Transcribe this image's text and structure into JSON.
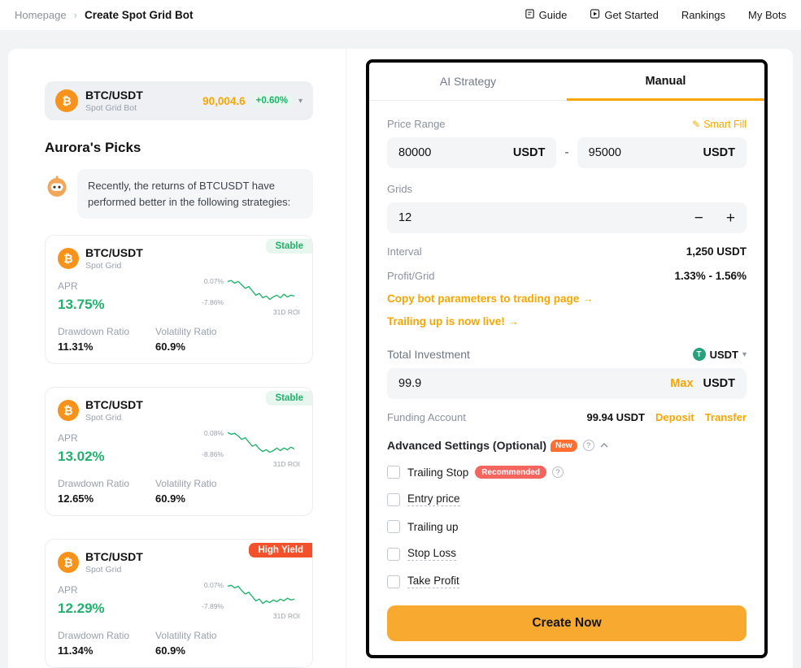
{
  "colors": {
    "accent": "#f7a600",
    "button": "#f8a92f",
    "green": "#20b26c",
    "green_bg": "#e7f6ee",
    "high_yield_badge": "#f2512b",
    "recommended_badge": "#f5655f",
    "new_badge": "#ff6e30",
    "usdt_coin": "#26a17b",
    "btc_coin": "#f7931a"
  },
  "icons": {
    "btc": "₿",
    "usdt_letter": "T",
    "help": "?",
    "caret_down": "▾",
    "breadcrumb_sep": "›",
    "pencil": "✎"
  },
  "header": {
    "breadcrumb": {
      "home": "Homepage",
      "current": "Create Spot Grid Bot"
    },
    "nav": [
      {
        "label": "Guide"
      },
      {
        "label": "Get Started"
      },
      {
        "label": "Rankings"
      },
      {
        "label": "My Bots"
      }
    ]
  },
  "left": {
    "pair_selector": {
      "pair": "BTC/USDT",
      "subtitle": "Spot Grid Bot",
      "price": "90,004.6",
      "change": "+0.60%"
    },
    "picks_title": "Aurora's Picks",
    "picks_note": "Recently, the returns of BTCUSDT have performed better in the following strategies:",
    "cards": [
      {
        "badge": "Stable",
        "pair": "BTC/USDT",
        "type": "Spot Grid",
        "apr_label": "APR",
        "apr": "13.75%",
        "chart": {
          "high": "0.07%",
          "low": "-7.86%",
          "roi": "31D ROI",
          "points": [
            5,
            4,
            7,
            5,
            9,
            13,
            11,
            16,
            21,
            19,
            24,
            22,
            26,
            23,
            21,
            24,
            20,
            23,
            21,
            22
          ]
        },
        "stats": [
          {
            "label": "Drawdown Ratio",
            "value": "11.31%"
          },
          {
            "label": "Volatility Ratio",
            "value": "60.9%"
          }
        ]
      },
      {
        "badge": "Stable",
        "pair": "BTC/USDT",
        "type": "Spot Grid",
        "apr_label": "APR",
        "apr": "13.02%",
        "chart": {
          "high": "0.08%",
          "low": "-8.86%",
          "roi": "31D ROI",
          "points": [
            4,
            6,
            5,
            8,
            12,
            10,
            15,
            20,
            18,
            23,
            26,
            24,
            27,
            25,
            22,
            25,
            22,
            24,
            21,
            23
          ]
        },
        "stats": [
          {
            "label": "Drawdown Ratio",
            "value": "12.65%"
          },
          {
            "label": "Volatility Ratio",
            "value": "60.9%"
          }
        ]
      },
      {
        "badge": "High Yield",
        "pair": "BTC/USDT",
        "type": "Spot Grid",
        "apr_label": "APR",
        "apr": "12.29%",
        "chart": {
          "high": "0.07%",
          "low": "-7.89%",
          "roi": "31D ROI",
          "points": [
            6,
            5,
            8,
            6,
            11,
            15,
            13,
            18,
            23,
            21,
            26,
            23,
            25,
            22,
            24,
            21,
            23,
            20,
            22,
            21
          ]
        },
        "stats": [
          {
            "label": "Drawdown Ratio",
            "value": "11.34%"
          },
          {
            "label": "Volatility Ratio",
            "value": "60.9%"
          }
        ]
      }
    ]
  },
  "form": {
    "tabs": [
      {
        "label": "AI Strategy"
      },
      {
        "label": "Manual"
      }
    ],
    "price_range": {
      "label": "Price Range",
      "smart_fill": "Smart Fill",
      "min": "80000",
      "max": "95000",
      "unit": "USDT",
      "separator": "-"
    },
    "grids": {
      "label": "Grids",
      "value": "12",
      "minus": "−",
      "plus": "+"
    },
    "interval": {
      "label": "Interval",
      "value": "1,250 USDT"
    },
    "profit": {
      "label": "Profit/Grid",
      "value": "1.33% - 1.56%"
    },
    "links": [
      "Copy bot parameters to trading page →",
      "Trailing up is now live! →"
    ],
    "total_investment": {
      "label": "Total Investment",
      "currency": "USDT",
      "value": "99.9",
      "max_label": "Max",
      "unit": "USDT"
    },
    "funding": {
      "label": "Funding Account",
      "balance": "99.94 USDT",
      "deposit": "Deposit",
      "transfer": "Transfer"
    },
    "advanced": {
      "title": "Advanced Settings (Optional)",
      "badge": "New"
    },
    "options": [
      {
        "label": "Trailing Stop",
        "badge": "Recommended"
      },
      {
        "label": "Entry price"
      },
      {
        "label": "Trailing up"
      },
      {
        "label": "Stop Loss"
      },
      {
        "label": "Take Profit"
      }
    ],
    "submit": "Create Now"
  }
}
